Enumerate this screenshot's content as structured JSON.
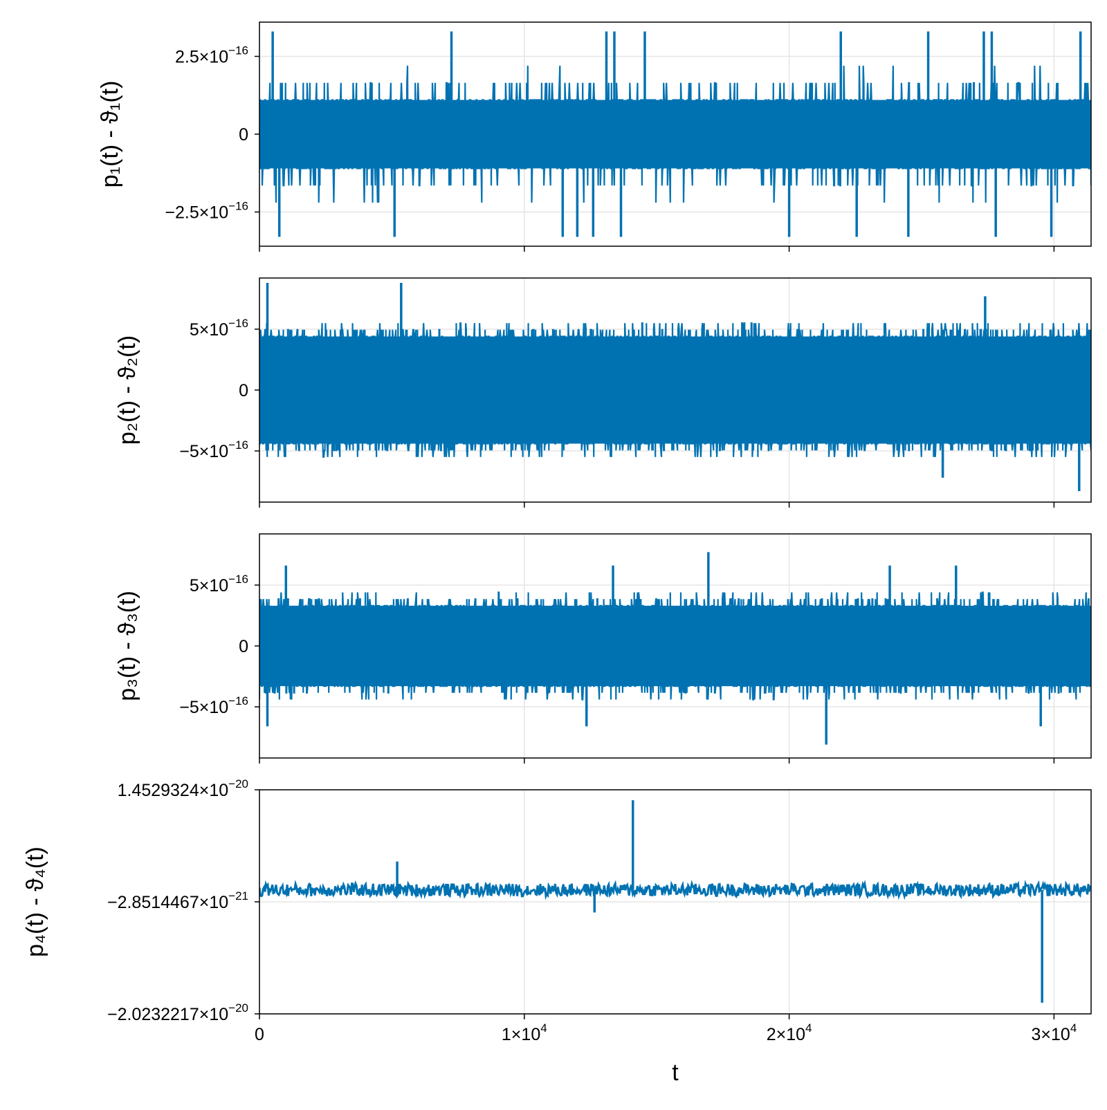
{
  "chart_data": [
    {
      "type": "line",
      "ylabel": "p₁(t) - ϑ₁(t)",
      "x_range": [
        0,
        31400
      ],
      "ylim": [
        -3.6e-16,
        3.6e-16
      ],
      "y_ticks": [
        {
          "value": 2.5e-16,
          "base": "2.5×10",
          "exp": "−16"
        },
        {
          "value": 0,
          "base": "0",
          "exp": ""
        },
        {
          "value": -2.5e-16,
          "base": "−2.5×10",
          "exp": "−16"
        }
      ],
      "x_ticks": [
        0,
        10000,
        20000,
        30000
      ],
      "show_x_tick_labels": false,
      "series_color": "#0072b2",
      "noise": {
        "band": 2.2e-16,
        "low": 1.1e-16,
        "p_mid": 0.16,
        "p_high": 0.02
      },
      "spikes": [
        {
          "x": 500,
          "y": 3.3e-16
        },
        {
          "x": 750,
          "y": -3.3e-16
        },
        {
          "x": 5100,
          "y": -3.3e-16
        },
        {
          "x": 7250,
          "y": 3.3e-16
        },
        {
          "x": 11450,
          "y": -3.3e-16
        },
        {
          "x": 12000,
          "y": -3.3e-16
        },
        {
          "x": 12600,
          "y": -3.3e-16
        },
        {
          "x": 13100,
          "y": 3.3e-16
        },
        {
          "x": 13400,
          "y": 3.3e-16
        },
        {
          "x": 13650,
          "y": -3.3e-16
        },
        {
          "x": 14550,
          "y": 3.3e-16
        },
        {
          "x": 20000,
          "y": -3.3e-16
        },
        {
          "x": 21950,
          "y": 3.3e-16
        },
        {
          "x": 22550,
          "y": -3.3e-16
        },
        {
          "x": 24500,
          "y": -3.3e-16
        },
        {
          "x": 25250,
          "y": 3.3e-16
        },
        {
          "x": 27350,
          "y": 3.3e-16
        },
        {
          "x": 27650,
          "y": 3.3e-16
        },
        {
          "x": 27800,
          "y": -3.3e-16
        },
        {
          "x": 29900,
          "y": -3.3e-16
        },
        {
          "x": 31000,
          "y": 3.3e-16
        }
      ]
    },
    {
      "type": "line",
      "ylabel": "p₂(t) - ϑ₂(t)",
      "x_range": [
        0,
        31400
      ],
      "ylim": [
        -9.2e-16,
        9.2e-16
      ],
      "y_ticks": [
        {
          "value": 5e-16,
          "base": "5×10",
          "exp": "−16"
        },
        {
          "value": 0,
          "base": "0",
          "exp": ""
        },
        {
          "value": -5e-16,
          "base": "−5×10",
          "exp": "−16"
        }
      ],
      "x_ticks": [
        0,
        10000,
        20000,
        30000
      ],
      "show_x_tick_labels": false,
      "series_color": "#0072b2",
      "noise": {
        "band": 5.5e-16,
        "low": 4.4e-16,
        "p_mid": 0.3,
        "p_high": 0.08
      },
      "spikes": [
        {
          "x": 300,
          "y": 8.8e-16
        },
        {
          "x": 5350,
          "y": 8.8e-16
        },
        {
          "x": 27400,
          "y": 7.7e-16
        },
        {
          "x": 25800,
          "y": -7.2e-16
        },
        {
          "x": 30950,
          "y": -8.3e-16
        }
      ]
    },
    {
      "type": "line",
      "ylabel": "p₃(t) - ϑ₃(t)",
      "x_range": [
        0,
        31400
      ],
      "ylim": [
        -9.2e-16,
        9.2e-16
      ],
      "y_ticks": [
        {
          "value": 5e-16,
          "base": "5×10",
          "exp": "−16"
        },
        {
          "value": 0,
          "base": "0",
          "exp": ""
        },
        {
          "value": -5e-16,
          "base": "−5×10",
          "exp": "−16"
        }
      ],
      "x_ticks": [
        0,
        10000,
        20000,
        30000
      ],
      "show_x_tick_labels": false,
      "series_color": "#0072b2",
      "noise": {
        "band": 4.4e-16,
        "low": 3.3e-16,
        "p_mid": 0.28,
        "p_high": 0.07
      },
      "spikes": [
        {
          "x": 1000,
          "y": 6.6e-16
        },
        {
          "x": 13350,
          "y": 6.6e-16
        },
        {
          "x": 16950,
          "y": 7.7e-16
        },
        {
          "x": 23800,
          "y": 6.6e-16
        },
        {
          "x": 21400,
          "y": -8.1e-16
        },
        {
          "x": 300,
          "y": -6.6e-16
        },
        {
          "x": 12350,
          "y": -6.6e-16
        },
        {
          "x": 29500,
          "y": -6.6e-16
        },
        {
          "x": 26300,
          "y": 6.6e-16
        }
      ]
    },
    {
      "type": "line",
      "ylabel": "p₄(t) - ϑ₄(t)",
      "xlabel": "t",
      "x_range": [
        0,
        31400
      ],
      "ylim": [
        -2.0232217e-20,
        1.4529324e-20
      ],
      "y_ticks": [
        {
          "value": 1.4529324e-20,
          "base": "1.4529324×10",
          "exp": "−20"
        },
        {
          "value": -2.8514467e-21,
          "base": "−2.8514467×10",
          "exp": "−21"
        },
        {
          "value": -2.0232217e-20,
          "base": "−2.0232217×10",
          "exp": "−20"
        }
      ],
      "x_ticks": [
        0,
        10000,
        20000,
        30000
      ],
      "x_tick_labels": [
        {
          "base": "0",
          "exp": ""
        },
        {
          "base": "1×10",
          "exp": "4"
        },
        {
          "base": "2×10",
          "exp": "4"
        },
        {
          "base": "3×10",
          "exp": "4"
        }
      ],
      "show_x_tick_labels": true,
      "series_color": "#0072b2",
      "noise": {
        "center": -1e-21,
        "amp": 1e-21
      },
      "spikes": [
        {
          "x": 5200,
          "y": 3.4e-21
        },
        {
          "x": 14100,
          "y": 1.29e-20
        },
        {
          "x": 12650,
          "y": -4.5e-21
        },
        {
          "x": 29550,
          "y": -1.85e-20
        }
      ]
    }
  ]
}
